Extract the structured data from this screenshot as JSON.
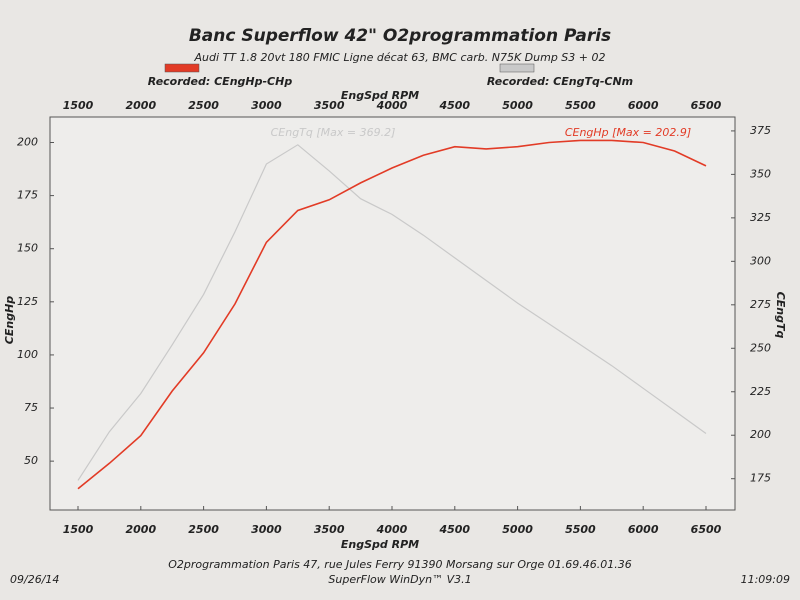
{
  "chart_data": {
    "type": "line",
    "title": "Banc Superflow 42\" O2programmation Paris",
    "subtitle": "Audi TT 1.8 20vt 180 FMIC Ligne décat 63, BMC carb. N75K Dump S3 + 02",
    "xlabel": "EngSpd RPM",
    "ylabel": "CEngHp",
    "y2label": "CEngTq",
    "x": [
      1500,
      1750,
      2000,
      2250,
      2500,
      2750,
      3000,
      3250,
      3500,
      3750,
      4000,
      4250,
      4500,
      4750,
      5000,
      5250,
      5500,
      5750,
      6000,
      6250,
      6500
    ],
    "series": [
      {
        "name": "Recorded: CEngHp-CHp",
        "color": "#e23b26",
        "values": [
          37,
          49,
          62,
          83,
          101,
          124,
          153,
          168,
          173,
          181,
          188,
          194,
          198,
          197,
          198,
          200,
          201,
          201,
          200,
          196,
          189
        ]
      },
      {
        "name": "Recorded: CEngTq-CNm",
        "color": "#c9c9c9",
        "axis": "y2",
        "values": [
          174,
          202,
          224,
          252,
          281,
          317,
          356,
          367,
          352,
          336,
          327,
          315,
          302,
          289,
          276,
          264,
          252,
          240,
          227,
          214,
          201
        ]
      }
    ],
    "annotations": [
      "CEngHp [Max = 202.9]",
      "CEngTq [Max = 369.2]"
    ],
    "xlim": [
      1277,
      6731
    ],
    "xticks": [
      1500,
      2000,
      2500,
      3000,
      3500,
      4000,
      4500,
      5000,
      5500,
      6000,
      6500
    ],
    "ylim": [
      27,
      212
    ],
    "yticks": [
      50,
      75,
      100,
      125,
      150,
      175,
      200
    ],
    "y2lim": [
      157,
      383
    ],
    "y2ticks": [
      175,
      200,
      225,
      250,
      275,
      300,
      325,
      350,
      375
    ],
    "grid": false,
    "footer": [
      "O2programmation Paris 47, rue Jules Ferry 91390 Morsang sur Orge 01.69.46.01.36",
      "SuperFlow WinDyn™ V3.1"
    ],
    "date": "09/26/14",
    "time": "11:09:09"
  }
}
